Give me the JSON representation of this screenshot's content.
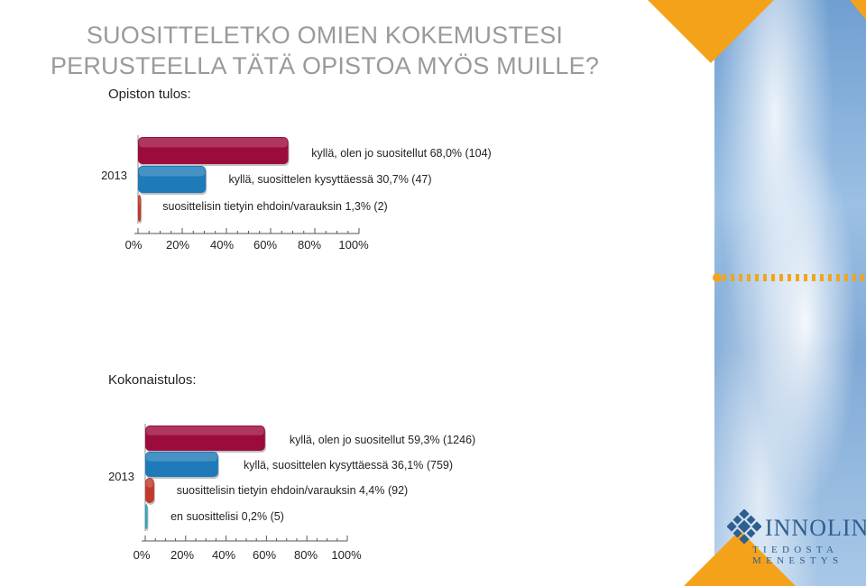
{
  "title": {
    "line1": "SUOSITTELETKO OMIEN KOKEMUSTESI",
    "line2": "PERUSTEELLA TÄTÄ OPISTOA MYÖS MUILLE?"
  },
  "section1_label": "Opiston tulos:",
  "section2_label": "Kokonaistulos:",
  "logo": {
    "name": "INNOLINK",
    "tagline": "TIEDOSTA MENESTYS"
  },
  "colors": {
    "kylla_olen": "#9b0b3b",
    "kylla_suosittelen": "#1e7ab8",
    "ehdoin": "#c0392b",
    "en": "#2aa5b8",
    "accent": "#f5a21b"
  },
  "chart_data": [
    {
      "type": "bar",
      "orientation": "horizontal",
      "title": "Opiston tulos:",
      "category": "2013",
      "xlim": [
        0,
        100
      ],
      "x_ticks": [
        "0%",
        "20%",
        "40%",
        "60%",
        "80%",
        "100%"
      ],
      "series": [
        {
          "name": "kyllä, olen jo suositellut",
          "value": 68.0,
          "count": 104,
          "label": "kyllä, olen jo suositellut 68,0% (104)",
          "color": "#9b0b3b"
        },
        {
          "name": "kyllä, suosittelen kysyttäessä",
          "value": 30.7,
          "count": 47,
          "label": "kyllä, suosittelen kysyttäessä 30,7% (47)",
          "color": "#1e7ab8"
        },
        {
          "name": "suosittelisin tietyin ehdoin/varauksin",
          "value": 1.3,
          "count": 2,
          "label": "suosittelisin tietyin ehdoin/varauksin 1,3% (2)",
          "color": "#c0392b"
        }
      ]
    },
    {
      "type": "bar",
      "orientation": "horizontal",
      "title": "Kokonaistulos:",
      "category": "2013",
      "xlim": [
        0,
        100
      ],
      "x_ticks": [
        "0%",
        "20%",
        "40%",
        "60%",
        "80%",
        "100%"
      ],
      "series": [
        {
          "name": "kyllä, olen jo suositellut",
          "value": 59.3,
          "count": 1246,
          "label": "kyllä, olen jo suositellut 59,3% (1246)",
          "color": "#9b0b3b"
        },
        {
          "name": "kyllä, suosittelen kysyttäessä",
          "value": 36.1,
          "count": 759,
          "label": "kyllä, suosittelen kysyttäessä 36,1% (759)",
          "color": "#1e7ab8"
        },
        {
          "name": "suosittelisin tietyin ehdoin/varauksin",
          "value": 4.4,
          "count": 92,
          "label": "suosittelisin tietyin ehdoin/varauksin 4,4% (92)",
          "color": "#c0392b"
        },
        {
          "name": "en suosittelisi",
          "value": 0.2,
          "count": 5,
          "label": "en suosittelisi 0,2% (5)",
          "color": "#2aa5b8"
        }
      ]
    }
  ]
}
